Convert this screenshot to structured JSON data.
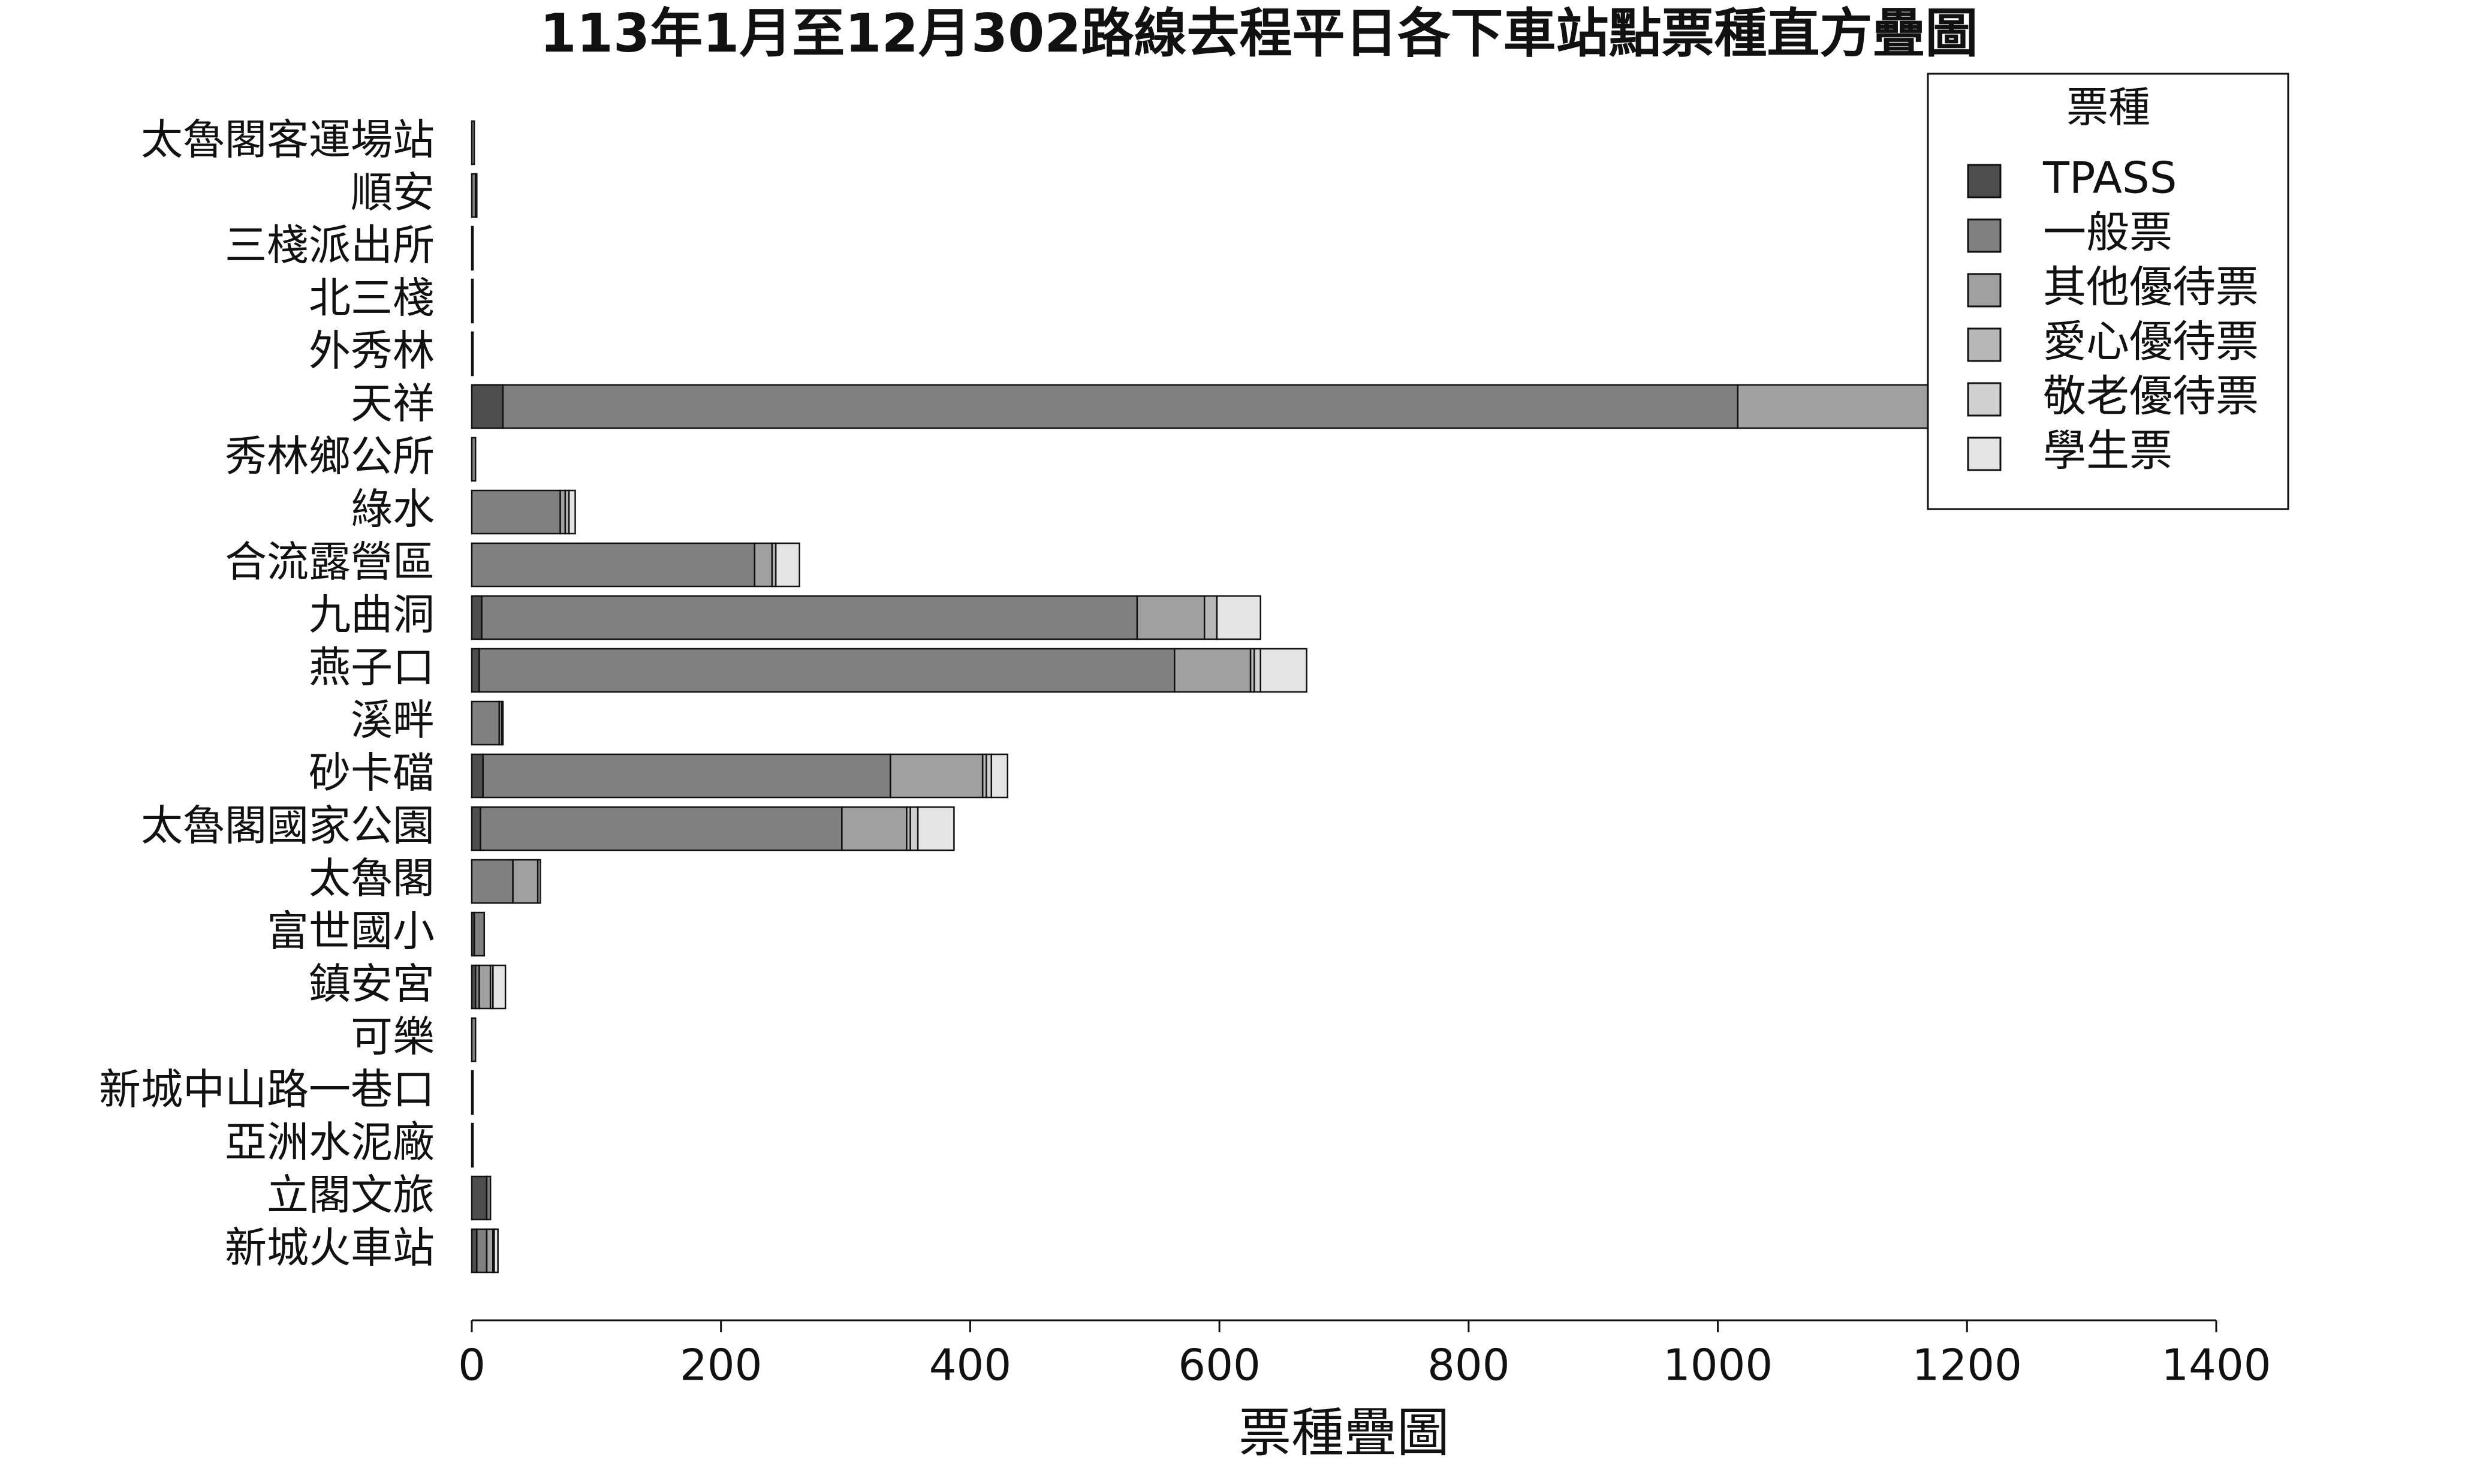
{
  "chart_data": {
    "type": "stacked_barh",
    "title": "113年1月至12月302路線去程平日各下車站點票種直方疊圖",
    "x_label": "票種疊圖",
    "legend_title": "票種",
    "legend_position": "upper right",
    "categories": [
      "太魯閣客運場站",
      "順安",
      "三棧派出所",
      "北三棧",
      "外秀林",
      "天祥",
      "秀林鄉公所",
      "綠水",
      "合流露營區",
      "九曲洞",
      "燕子口",
      "溪畔",
      "砂卡礑",
      "太魯閣國家公園",
      "太魯閣",
      "富世國小",
      "鎮安宮",
      "可樂",
      "新城中山路一巷口",
      "亞洲水泥廠",
      "立閣文旅",
      "新城火車站"
    ],
    "series": [
      {
        "name": "TPASS",
        "color": "#4d4d4d",
        "values": [
          0,
          0,
          0,
          0,
          0,
          25,
          0,
          0,
          0,
          8,
          6,
          0,
          9,
          7,
          0,
          2,
          3,
          0,
          0,
          0,
          12,
          4
        ]
      },
      {
        "name": "一般票",
        "color": "#808080",
        "values": [
          2,
          3,
          1,
          1,
          1,
          991,
          3,
          71,
          227,
          526,
          558,
          22,
          327,
          290,
          33,
          8,
          3,
          3,
          1,
          1,
          3,
          8
        ]
      },
      {
        "name": "其他優待票",
        "color": "#a0a0a0",
        "values": [
          0,
          1,
          0,
          0,
          0,
          214,
          0,
          4,
          14,
          54,
          61,
          2,
          74,
          52,
          20,
          0,
          9,
          0,
          0,
          0,
          0,
          5
        ]
      },
      {
        "name": "愛心優待票",
        "color": "#b8b8b8",
        "values": [
          0,
          0,
          0,
          0,
          0,
          5,
          0,
          3,
          3,
          10,
          3,
          1,
          3,
          3,
          2,
          0,
          2,
          0,
          0,
          0,
          0,
          1
        ]
      },
      {
        "name": "敬老優待票",
        "color": "#d0d0d0",
        "values": [
          0,
          0,
          0,
          0,
          0,
          20,
          0,
          0,
          0,
          0,
          5,
          0,
          4,
          6,
          0,
          0,
          0,
          0,
          0,
          0,
          0,
          0
        ]
      },
      {
        "name": "學生票",
        "color": "#e4e4e4",
        "values": [
          0,
          0,
          0,
          0,
          0,
          40,
          0,
          5,
          19,
          35,
          37,
          0,
          13,
          29,
          0,
          0,
          10,
          0,
          0,
          0,
          0,
          3
        ]
      }
    ],
    "xlim": [
      0,
      1400
    ],
    "xticks": [
      0,
      200,
      400,
      600,
      800,
      1000,
      1200,
      1400
    ]
  }
}
